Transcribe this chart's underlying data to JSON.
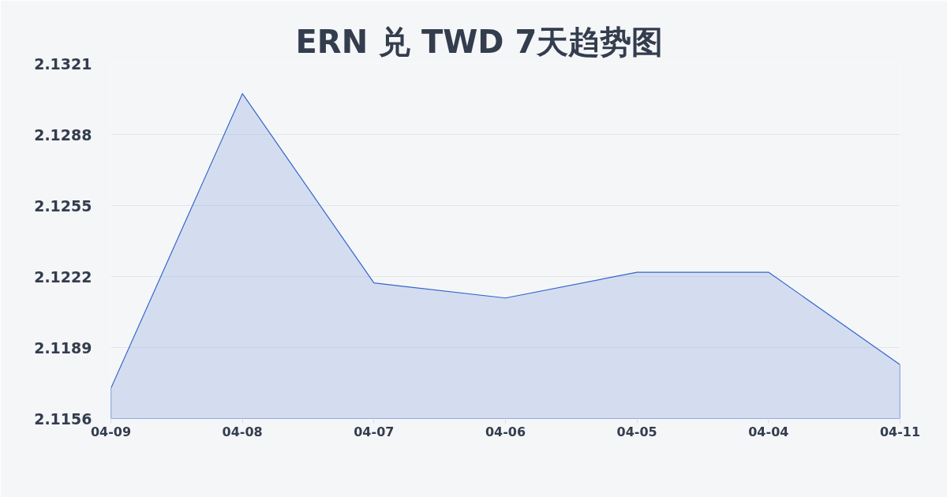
{
  "chart_data": {
    "type": "area",
    "title": "ERN 兑 TWD 7天趋势图",
    "categories": [
      "04-09",
      "04-08",
      "04-07",
      "04-06",
      "04-05",
      "04-04",
      "04-11"
    ],
    "series": [
      {
        "color": "#3366cc",
        "values": [
          2.117,
          2.1307,
          2.1219,
          2.1212,
          2.1224,
          2.1224,
          2.1181
        ]
      }
    ],
    "ylim": [
      2.1156,
      2.1321
    ],
    "yticks": [
      2.1156,
      2.1189,
      2.1222,
      2.1255,
      2.1288,
      2.1321
    ],
    "grid": "y"
  }
}
